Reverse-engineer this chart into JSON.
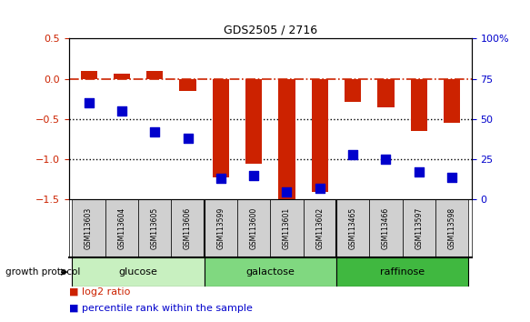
{
  "title": "GDS2505 / 2716",
  "samples": [
    "GSM113603",
    "GSM113604",
    "GSM113605",
    "GSM113606",
    "GSM113599",
    "GSM113600",
    "GSM113601",
    "GSM113602",
    "GSM113465",
    "GSM113466",
    "GSM113597",
    "GSM113598"
  ],
  "log2_ratio": [
    0.1,
    0.07,
    0.1,
    -0.15,
    -1.22,
    -1.05,
    -1.55,
    -1.4,
    -0.28,
    -0.35,
    -0.65,
    -0.55
  ],
  "percentile_rank": [
    60,
    55,
    42,
    38,
    13,
    15,
    5,
    7,
    28,
    25,
    17,
    14
  ],
  "groups": [
    {
      "label": "glucose",
      "start": 0,
      "end": 3,
      "color": "#c8f0c0"
    },
    {
      "label": "galactose",
      "start": 4,
      "end": 7,
      "color": "#80d880"
    },
    {
      "label": "raffinose",
      "start": 8,
      "end": 11,
      "color": "#40b840"
    }
  ],
  "ylim_left": [
    -1.5,
    0.5
  ],
  "ylim_right": [
    0,
    100
  ],
  "bar_color": "#cc2200",
  "dot_color": "#0000cc",
  "bar_width": 0.5,
  "dot_size": 55,
  "left_yticks": [
    0.5,
    0.0,
    -0.5,
    -1.0,
    -1.5
  ],
  "right_yticks": [
    100,
    75,
    50,
    25,
    0
  ],
  "right_ytick_labels": [
    "100%",
    "75",
    "50",
    "25",
    "0"
  ],
  "group_boundaries": [
    3.5,
    7.5
  ]
}
